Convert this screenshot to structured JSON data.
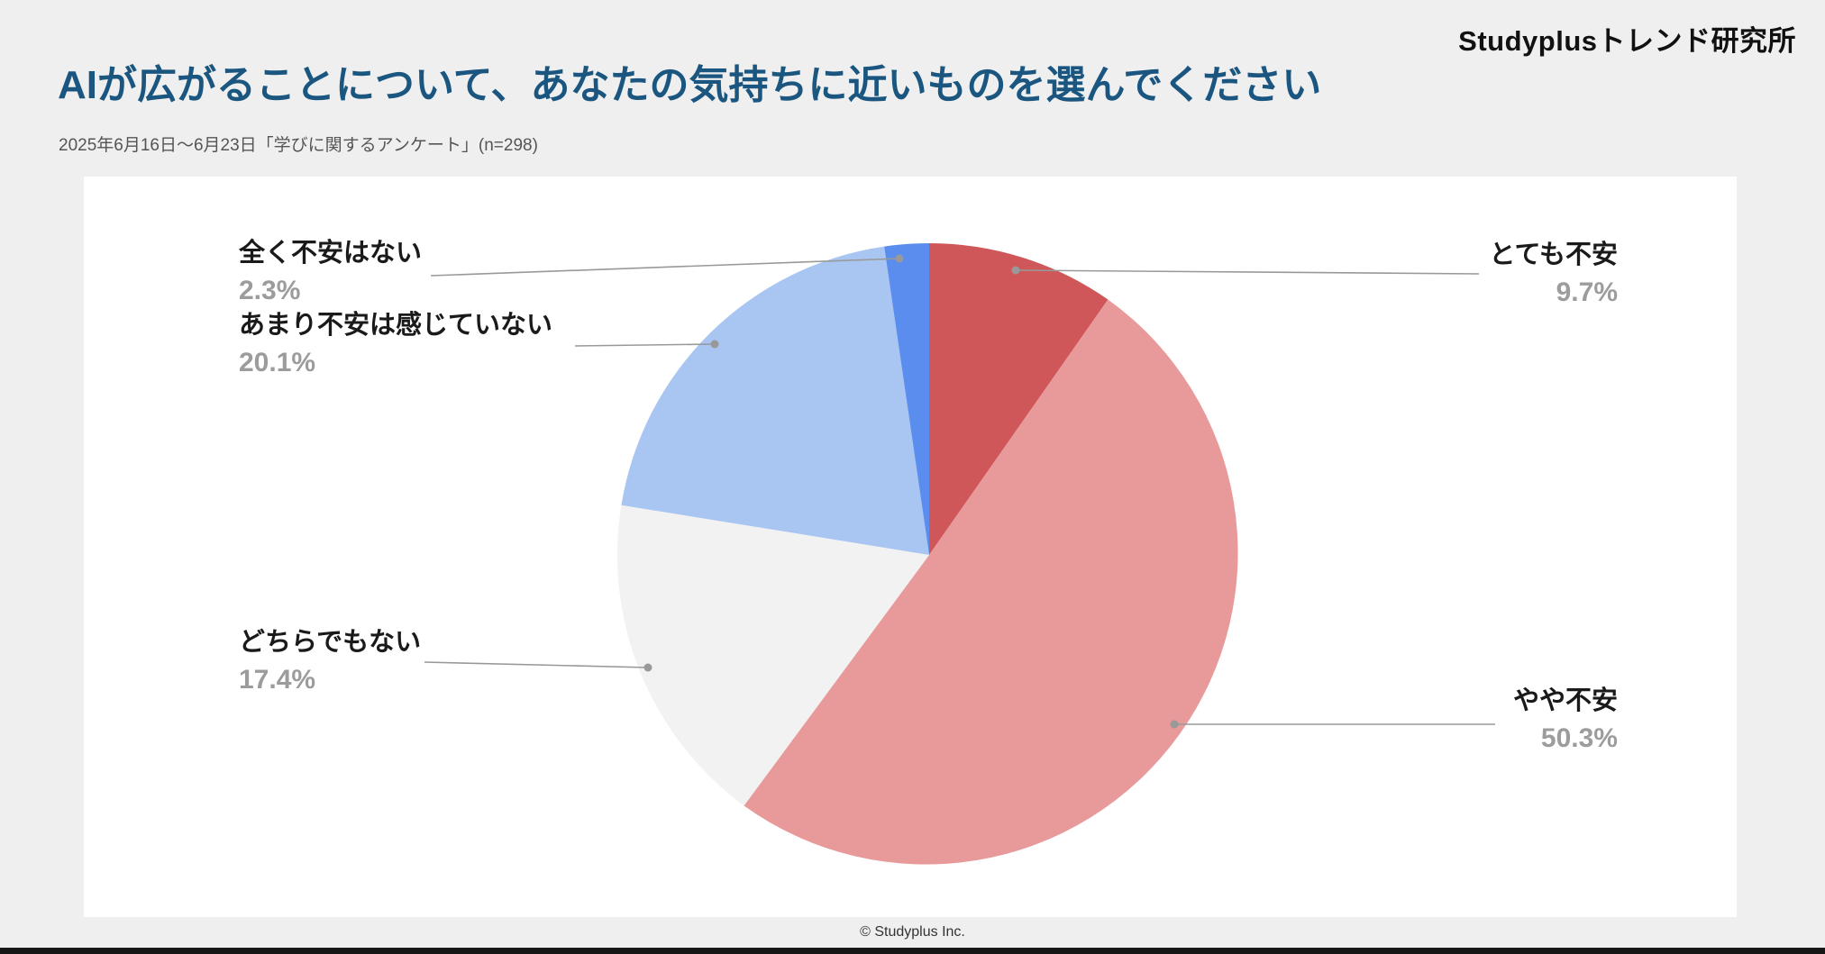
{
  "page": {
    "brand": "Studyplusトレンド研究所",
    "title": "AIが広がることについて、あなたの気持ちに近いものを選んでください",
    "subtitle": "2025年6月16日～6月23日「学びに関するアンケート」(n=298)",
    "footer": "© Studyplus Inc."
  },
  "chart_data": {
    "type": "pie",
    "title": "AIが広がることについて、あなたの気持ちに近いものを選んでください",
    "categories": [
      "とても不安",
      "やや不安",
      "どちらでもない",
      "あまり不安は感じていない",
      "全く不安はない"
    ],
    "values": [
      9.7,
      50.3,
      17.4,
      20.1,
      2.3
    ],
    "value_labels": [
      "9.7%",
      "50.3%",
      "17.4%",
      "20.1%",
      "2.3%"
    ],
    "colors": [
      "#d05759",
      "#e89a9b",
      "#f2f2f2",
      "#a9c5f1",
      "#5b8def"
    ],
    "start_angle_deg": 0,
    "direction": "clockwise",
    "total_n": 298,
    "legend_position": "callouts",
    "leader_line_color": "#999999"
  }
}
